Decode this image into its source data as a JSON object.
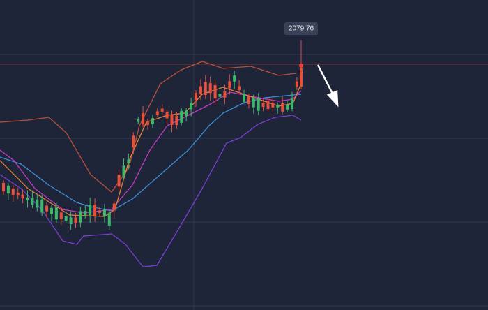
{
  "chart_data": {
    "type": "candlestick",
    "last_price": 2079.76
  }
}
